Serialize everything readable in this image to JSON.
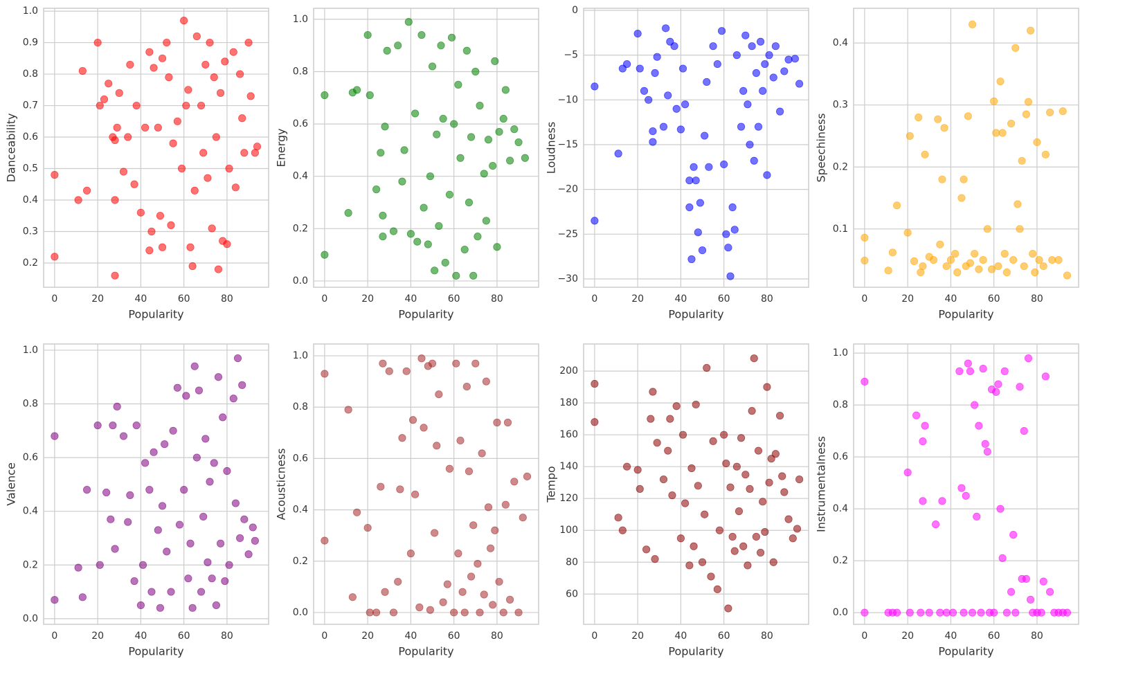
{
  "chart_data": [
    {
      "type": "scatter",
      "xlabel": "Popularity",
      "ylabel": "Danceability",
      "color": "red",
      "grid": true,
      "xlim": [
        -5.1,
        99.3
      ],
      "ylim": [
        0.123,
        1.009
      ],
      "xticks": [
        0,
        20,
        40,
        60,
        80
      ],
      "yticks": [
        0.2,
        0.3,
        0.4,
        0.5,
        0.6,
        0.7,
        0.8,
        0.9,
        {
          "value": 1,
          "label": "1.0"
        }
      ],
      "x": [
        0,
        0,
        11,
        13,
        15,
        20,
        21,
        23,
        25,
        27,
        28,
        28,
        28,
        29,
        30,
        32,
        34,
        35,
        37,
        38,
        40,
        42,
        44,
        44,
        45,
        46,
        48,
        49,
        50,
        50,
        52,
        53,
        54,
        55,
        57,
        59,
        60,
        61,
        62,
        63,
        64,
        65,
        66,
        68,
        69,
        70,
        71,
        72,
        73,
        74,
        75,
        76,
        77,
        78,
        79,
        80,
        81,
        83,
        84,
        86,
        87,
        88,
        90,
        91,
        93,
        94
      ],
      "values": [
        0.48,
        0.22,
        0.4,
        0.81,
        0.43,
        0.9,
        0.7,
        0.72,
        0.77,
        0.6,
        0.59,
        0.16,
        0.4,
        0.63,
        0.74,
        0.49,
        0.6,
        0.83,
        0.45,
        0.7,
        0.36,
        0.63,
        0.87,
        0.24,
        0.3,
        0.82,
        0.63,
        0.35,
        0.25,
        0.85,
        0.9,
        0.79,
        0.32,
        0.58,
        0.65,
        0.5,
        0.97,
        0.7,
        0.75,
        0.25,
        0.19,
        0.43,
        0.92,
        0.7,
        0.55,
        0.83,
        0.47,
        0.9,
        0.31,
        0.79,
        0.6,
        0.18,
        0.74,
        0.27,
        0.84,
        0.26,
        0.5,
        0.87,
        0.44,
        0.8,
        0.66,
        0.55,
        0.9,
        0.73,
        0.55,
        0.57
      ]
    },
    {
      "type": "scatter",
      "xlabel": "Popularity",
      "ylabel": "Energy",
      "color": "green",
      "grid": true,
      "xlim": [
        -5.1,
        99.3
      ],
      "ylim": [
        -0.024,
        1.042
      ],
      "xticks": [
        0,
        20,
        40,
        60,
        80
      ],
      "yticks": [
        {
          "value": 0,
          "label": "0.0"
        },
        0.2,
        0.4,
        0.6,
        0.8,
        {
          "value": 1,
          "label": "1.0"
        }
      ],
      "x": [
        0,
        0,
        11,
        13,
        15,
        20,
        21,
        24,
        26,
        27,
        27,
        28,
        29,
        32,
        34,
        36,
        37,
        39,
        40,
        42,
        43,
        45,
        46,
        48,
        49,
        50,
        51,
        52,
        53,
        54,
        55,
        56,
        58,
        59,
        60,
        61,
        62,
        63,
        65,
        66,
        67,
        68,
        69,
        70,
        71,
        72,
        74,
        75,
        76,
        78,
        79,
        80,
        81,
        83,
        84,
        86,
        88,
        90,
        93
      ],
      "values": [
        0.71,
        0.1,
        0.26,
        0.72,
        0.73,
        0.94,
        0.71,
        0.35,
        0.49,
        0.25,
        0.17,
        0.59,
        0.88,
        0.19,
        0.9,
        0.38,
        0.5,
        0.99,
        0.18,
        0.64,
        0.15,
        0.94,
        0.28,
        0.14,
        0.4,
        0.82,
        0.04,
        0.56,
        0.21,
        0.9,
        0.62,
        0.07,
        0.33,
        0.93,
        0.6,
        0.02,
        0.75,
        0.47,
        0.12,
        0.88,
        0.3,
        0.55,
        0.02,
        0.8,
        0.17,
        0.67,
        0.41,
        0.23,
        0.54,
        0.44,
        0.84,
        0.13,
        0.57,
        0.62,
        0.73,
        0.46,
        0.58,
        0.53,
        0.47
      ]
    },
    {
      "type": "scatter",
      "xlabel": "Popularity",
      "ylabel": "Loudness",
      "color": "blue",
      "grid": true,
      "xlim": [
        -5.1,
        99.3
      ],
      "ylim": [
        -30.93,
        0.23
      ],
      "xticks": [
        0,
        20,
        40,
        60,
        80
      ],
      "yticks": [
        {
          "value": -30,
          "label": "−30"
        },
        {
          "value": -25,
          "label": "−25"
        },
        {
          "value": -20,
          "label": "−20"
        },
        {
          "value": -15,
          "label": "−15"
        },
        {
          "value": -10,
          "label": "−10"
        },
        {
          "value": -5,
          "label": "−5"
        },
        0
      ],
      "x": [
        0,
        0,
        11,
        13,
        15,
        20,
        21,
        23,
        25,
        27,
        27,
        28,
        29,
        32,
        33,
        34,
        35,
        37,
        38,
        40,
        41,
        42,
        44,
        44,
        45,
        46,
        47,
        48,
        49,
        50,
        51,
        52,
        53,
        55,
        57,
        59,
        60,
        61,
        62,
        63,
        64,
        65,
        66,
        68,
        69,
        70,
        71,
        72,
        73,
        74,
        75,
        76,
        77,
        78,
        79,
        80,
        81,
        83,
        84,
        86,
        88,
        90,
        93,
        95
      ],
      "values": [
        -8.5,
        -23.5,
        -16,
        -6.5,
        -6,
        -2.6,
        -6.5,
        -9,
        -10,
        -14.7,
        -13.5,
        -7,
        -5.2,
        -13,
        -2,
        -9.5,
        -3.5,
        -4,
        -11,
        -13.3,
        -6.5,
        -10.5,
        -22,
        -19,
        -27.8,
        -17.5,
        -19,
        -24.8,
        -21.5,
        -26.8,
        -14,
        -8,
        -17.5,
        -4,
        -6,
        -2.3,
        -17.2,
        -25,
        -26.5,
        -29.7,
        -22,
        -24.5,
        -5,
        -13,
        -9,
        -2.8,
        -10.5,
        -15,
        -4,
        -16.8,
        -7,
        -13,
        -3.5,
        -9,
        -6,
        -18.4,
        -5,
        -7.5,
        -4,
        -11.3,
        -6.8,
        -5.5,
        -5.4,
        -8.2
      ]
    },
    {
      "type": "scatter",
      "xlabel": "Popularity",
      "ylabel": "Speechiness",
      "color": "orange",
      "grid": true,
      "xlim": [
        -5.1,
        99.3
      ],
      "ylim": [
        0.006,
        0.456
      ],
      "xticks": [
        0,
        20,
        40,
        60,
        80
      ],
      "yticks": [
        0.1,
        0.2,
        0.3,
        0.4
      ],
      "x": [
        0,
        0,
        11,
        13,
        15,
        20,
        21,
        23,
        25,
        26,
        27,
        28,
        30,
        32,
        34,
        35,
        36,
        37,
        38,
        40,
        42,
        43,
        45,
        46,
        47,
        48,
        49,
        50,
        51,
        53,
        55,
        57,
        59,
        60,
        61,
        62,
        63,
        64,
        65,
        66,
        68,
        69,
        70,
        71,
        72,
        73,
        74,
        75,
        76,
        77,
        78,
        79,
        80,
        81,
        83,
        84,
        86,
        87,
        90,
        92,
        94
      ],
      "values": [
        0.086,
        0.049,
        0.033,
        0.062,
        0.138,
        0.094,
        0.25,
        0.048,
        0.28,
        0.03,
        0.04,
        0.22,
        0.055,
        0.05,
        0.277,
        0.075,
        0.18,
        0.263,
        0.04,
        0.05,
        0.06,
        0.03,
        0.15,
        0.18,
        0.04,
        0.282,
        0.045,
        0.43,
        0.06,
        0.035,
        0.05,
        0.1,
        0.035,
        0.306,
        0.255,
        0.04,
        0.338,
        0.255,
        0.06,
        0.03,
        0.27,
        0.05,
        0.392,
        0.14,
        0.1,
        0.21,
        0.04,
        0.285,
        0.305,
        0.42,
        0.06,
        0.03,
        0.24,
        0.05,
        0.04,
        0.22,
        0.288,
        0.05,
        0.05,
        0.29,
        0.025
      ]
    },
    {
      "type": "scatter",
      "xlabel": "Popularity",
      "ylabel": "Valence",
      "color": "purple",
      "grid": true,
      "xlim": [
        -5.1,
        99.3
      ],
      "ylim": [
        -0.021,
        1.023
      ],
      "xticks": [
        0,
        20,
        40,
        60,
        80
      ],
      "yticks": [
        {
          "value": 0,
          "label": "0.0"
        },
        0.2,
        0.4,
        0.6,
        0.8,
        {
          "value": 1,
          "label": "1.0"
        }
      ],
      "x": [
        0,
        0,
        11,
        13,
        15,
        20,
        21,
        24,
        26,
        27,
        28,
        29,
        32,
        34,
        35,
        37,
        38,
        40,
        41,
        42,
        44,
        45,
        46,
        48,
        49,
        50,
        51,
        52,
        54,
        55,
        57,
        58,
        60,
        61,
        62,
        63,
        64,
        65,
        66,
        67,
        68,
        69,
        70,
        71,
        72,
        73,
        74,
        75,
        76,
        77,
        78,
        79,
        80,
        81,
        83,
        84,
        85,
        86,
        87,
        88,
        90,
        92,
        93
      ],
      "values": [
        0.68,
        0.07,
        0.19,
        0.08,
        0.48,
        0.72,
        0.2,
        0.47,
        0.37,
        0.72,
        0.26,
        0.79,
        0.68,
        0.36,
        0.46,
        0.14,
        0.72,
        0.05,
        0.2,
        0.58,
        0.48,
        0.1,
        0.62,
        0.33,
        0.04,
        0.42,
        0.65,
        0.25,
        0.1,
        0.7,
        0.86,
        0.35,
        0.48,
        0.83,
        0.15,
        0.28,
        0.04,
        0.94,
        0.6,
        0.85,
        0.1,
        0.38,
        0.67,
        0.21,
        0.51,
        0.15,
        0.58,
        0.05,
        0.9,
        0.28,
        0.75,
        0.14,
        0.55,
        0.2,
        0.82,
        0.43,
        0.97,
        0.3,
        0.87,
        0.37,
        0.24,
        0.34,
        0.29
      ]
    },
    {
      "type": "scatter",
      "xlabel": "Popularity",
      "ylabel": "Acousticness",
      "color": "brown",
      "grid": true,
      "xlim": [
        -5.1,
        99.3
      ],
      "ylim": [
        -0.046,
        1.046
      ],
      "xticks": [
        0,
        20,
        40,
        60,
        80
      ],
      "yticks": [
        {
          "value": 0,
          "label": "0.0"
        },
        0.2,
        0.4,
        0.6,
        0.8,
        {
          "value": 1,
          "label": "1.0"
        }
      ],
      "x": [
        0,
        0,
        11,
        13,
        15,
        20,
        21,
        24,
        26,
        27,
        28,
        30,
        32,
        34,
        35,
        36,
        38,
        40,
        41,
        42,
        44,
        45,
        46,
        48,
        49,
        50,
        51,
        52,
        53,
        55,
        57,
        58,
        60,
        61,
        62,
        63,
        64,
        65,
        66,
        67,
        68,
        69,
        70,
        71,
        72,
        73,
        74,
        75,
        76,
        77,
        78,
        79,
        80,
        81,
        83,
        84,
        85,
        86,
        88,
        90,
        92,
        94
      ],
      "values": [
        0.93,
        0.28,
        0.79,
        0.06,
        0.39,
        0.33,
        0,
        0,
        0.49,
        0.97,
        0.08,
        0.94,
        0,
        0.12,
        0.48,
        0.68,
        0.94,
        0.23,
        0.75,
        0.46,
        0.02,
        0.99,
        0.72,
        0.96,
        0.01,
        0.97,
        0.31,
        0.65,
        0.85,
        0.04,
        0.11,
        0.56,
        0,
        0.97,
        0.23,
        0.67,
        0.08,
        0,
        0.88,
        0.55,
        0.14,
        0.34,
        0.97,
        0.19,
        0,
        0.62,
        0.07,
        0.9,
        0.41,
        0.25,
        0.03,
        0.32,
        0.74,
        0.12,
        0,
        0.42,
        0.74,
        0.05,
        0.51,
        0,
        0.37,
        0.53
      ]
    },
    {
      "type": "scatter",
      "xlabel": "Popularity",
      "ylabel": "Tempo",
      "color": "darkred",
      "grid": true,
      "xlim": [
        -5.1,
        99.3
      ],
      "ylim": [
        41,
        217
      ],
      "xticks": [
        0,
        20,
        40,
        60,
        80
      ],
      "yticks": [
        60,
        80,
        100,
        120,
        140,
        160,
        180,
        200
      ],
      "x": [
        0,
        0,
        11,
        13,
        15,
        20,
        21,
        24,
        26,
        27,
        28,
        29,
        32,
        34,
        35,
        36,
        38,
        40,
        41,
        42,
        44,
        45,
        46,
        47,
        48,
        50,
        51,
        52,
        54,
        55,
        57,
        58,
        60,
        61,
        62,
        63,
        64,
        65,
        66,
        67,
        68,
        69,
        70,
        71,
        72,
        73,
        74,
        75,
        76,
        77,
        78,
        79,
        80,
        81,
        82,
        83,
        84,
        86,
        87,
        88,
        90,
        92,
        94,
        95
      ],
      "values": [
        192,
        168,
        108,
        100,
        140,
        138,
        126,
        88,
        170,
        187,
        82,
        155,
        132,
        150,
        170,
        122,
        178,
        95,
        160,
        117,
        78,
        139,
        90,
        179,
        128,
        80,
        110,
        202,
        71,
        156,
        63,
        100,
        160,
        142,
        51,
        127,
        96,
        87,
        140,
        112,
        158,
        90,
        135,
        78,
        126,
        175,
        208,
        96,
        150,
        86,
        118,
        99,
        190,
        130,
        145,
        80,
        148,
        172,
        134,
        124,
        107,
        95,
        101,
        132
      ]
    },
    {
      "type": "scatter",
      "xlabel": "Popularity",
      "ylabel": "Instrumentalness",
      "color": "magenta",
      "grid": true,
      "xlim": [
        -5.1,
        99.3
      ],
      "ylim": [
        -0.045,
        1.035
      ],
      "xticks": [
        0,
        20,
        40,
        60,
        80
      ],
      "yticks": [
        {
          "value": 0,
          "label": "0.0"
        },
        0.2,
        0.4,
        0.6,
        0.8,
        {
          "value": 1,
          "label": "1.0"
        }
      ],
      "x": [
        0,
        0,
        11,
        13,
        15,
        20,
        21,
        24,
        26,
        27,
        27,
        28,
        30,
        33,
        35,
        36,
        38,
        41,
        44,
        45,
        46,
        47,
        48,
        49,
        50,
        51,
        52,
        53,
        54,
        55,
        56,
        57,
        58,
        59,
        60,
        61,
        62,
        63,
        64,
        65,
        66,
        68,
        69,
        70,
        72,
        73,
        74,
        75,
        76,
        77,
        78,
        80,
        82,
        83,
        84,
        86,
        88,
        90,
        92,
        94
      ],
      "values": [
        0.89,
        0,
        0,
        0,
        0,
        0.54,
        0,
        0.76,
        0,
        0.66,
        0.43,
        0.72,
        0,
        0.34,
        0,
        0.43,
        0,
        0,
        0.93,
        0.48,
        0,
        0.45,
        0.96,
        0.93,
        0,
        0.8,
        0.37,
        0.72,
        0,
        0.94,
        0.65,
        0.62,
        0,
        0.86,
        0,
        0.85,
        0.88,
        0.4,
        0.21,
        0.93,
        0,
        0.08,
        0.3,
        0,
        0.87,
        0.13,
        0.7,
        0.13,
        0.98,
        0.05,
        0,
        0,
        0,
        0.12,
        0.91,
        0.08,
        0,
        0,
        0,
        0
      ]
    }
  ]
}
